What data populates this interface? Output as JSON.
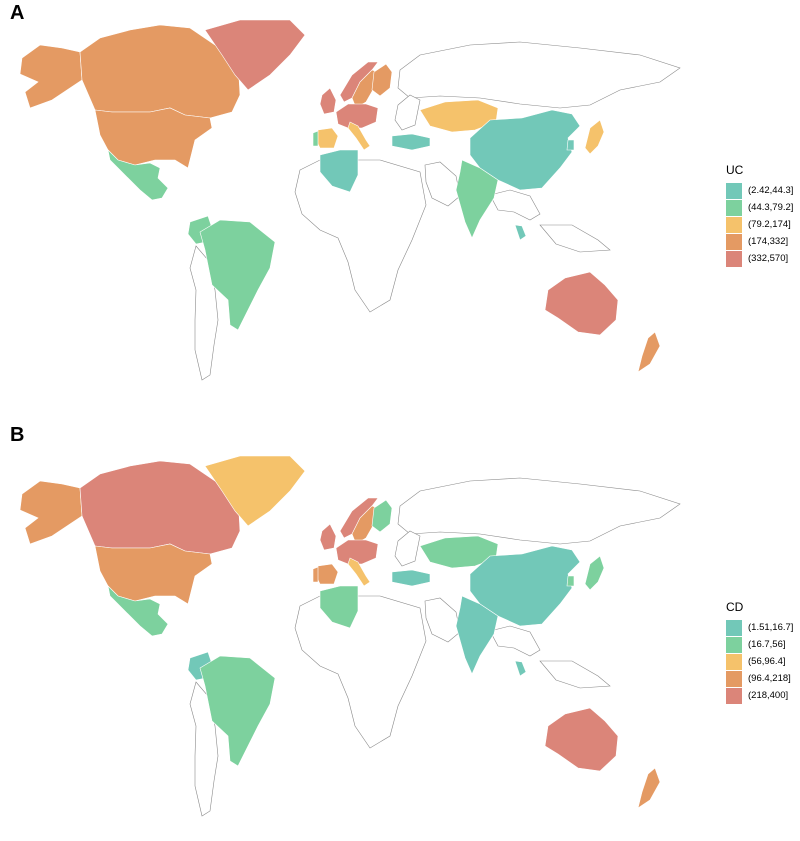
{
  "panels": [
    {
      "letter": "A",
      "legend_title": "UC",
      "legend": [
        {
          "label": "(2.42,44.3]",
          "color": "#72c8b8"
        },
        {
          "label": "(44.3,79.2]",
          "color": "#7dd19e"
        },
        {
          "label": "(79.2,174]",
          "color": "#f5c26b"
        },
        {
          "label": "(174,332]",
          "color": "#e49a63"
        },
        {
          "label": "(332,570]",
          "color": "#db8579"
        }
      ],
      "regions": [
        {
          "name": "Alaska",
          "class": 3
        },
        {
          "name": "Canada",
          "class": 3
        },
        {
          "name": "Greenland",
          "class": 4
        },
        {
          "name": "United States",
          "class": 3
        },
        {
          "name": "Mexico",
          "class": 1
        },
        {
          "name": "Colombia",
          "class": 1
        },
        {
          "name": "Brazil",
          "class": 1
        },
        {
          "name": "Norway",
          "class": 4
        },
        {
          "name": "Sweden",
          "class": 3
        },
        {
          "name": "Finland",
          "class": 3
        },
        {
          "name": "United Kingdom",
          "class": 4
        },
        {
          "name": "Central Europe",
          "class": 4
        },
        {
          "name": "Spain",
          "class": 2
        },
        {
          "name": "Portugal",
          "class": 1
        },
        {
          "name": "Italy",
          "class": 2
        },
        {
          "name": "Turkey",
          "class": 0
        },
        {
          "name": "Algeria",
          "class": 0
        },
        {
          "name": "Kazakhstan",
          "class": 2
        },
        {
          "name": "China",
          "class": 0
        },
        {
          "name": "India",
          "class": 1
        },
        {
          "name": "Japan",
          "class": 2
        },
        {
          "name": "South Korea",
          "class": 0
        },
        {
          "name": "Malaysia",
          "class": 0
        },
        {
          "name": "Australia",
          "class": 4
        },
        {
          "name": "New Zealand",
          "class": 3
        }
      ]
    },
    {
      "letter": "B",
      "legend_title": "CD",
      "legend": [
        {
          "label": "(1.51,16.7]",
          "color": "#72c8b8"
        },
        {
          "label": "(16.7,56]",
          "color": "#7dd19e"
        },
        {
          "label": "(56,96.4]",
          "color": "#f5c26b"
        },
        {
          "label": "(96.4,218]",
          "color": "#e49a63"
        },
        {
          "label": "(218,400]",
          "color": "#db8579"
        }
      ],
      "regions": [
        {
          "name": "Alaska",
          "class": 3
        },
        {
          "name": "Canada",
          "class": 4
        },
        {
          "name": "Greenland",
          "class": 2
        },
        {
          "name": "United States",
          "class": 3
        },
        {
          "name": "Mexico",
          "class": 1
        },
        {
          "name": "Colombia",
          "class": 0
        },
        {
          "name": "Brazil",
          "class": 1
        },
        {
          "name": "Norway",
          "class": 4
        },
        {
          "name": "Sweden",
          "class": 3
        },
        {
          "name": "Finland",
          "class": 1
        },
        {
          "name": "United Kingdom",
          "class": 4
        },
        {
          "name": "Central Europe",
          "class": 4
        },
        {
          "name": "Spain",
          "class": 3
        },
        {
          "name": "Portugal",
          "class": 3
        },
        {
          "name": "Italy",
          "class": 2
        },
        {
          "name": "Turkey",
          "class": 0
        },
        {
          "name": "Algeria",
          "class": 1
        },
        {
          "name": "Kazakhstan",
          "class": 1
        },
        {
          "name": "China",
          "class": 0
        },
        {
          "name": "India",
          "class": 0
        },
        {
          "name": "Japan",
          "class": 1
        },
        {
          "name": "South Korea",
          "class": 1
        },
        {
          "name": "Malaysia",
          "class": 0
        },
        {
          "name": "Australia",
          "class": 4
        },
        {
          "name": "New Zealand",
          "class": 3
        }
      ]
    }
  ]
}
